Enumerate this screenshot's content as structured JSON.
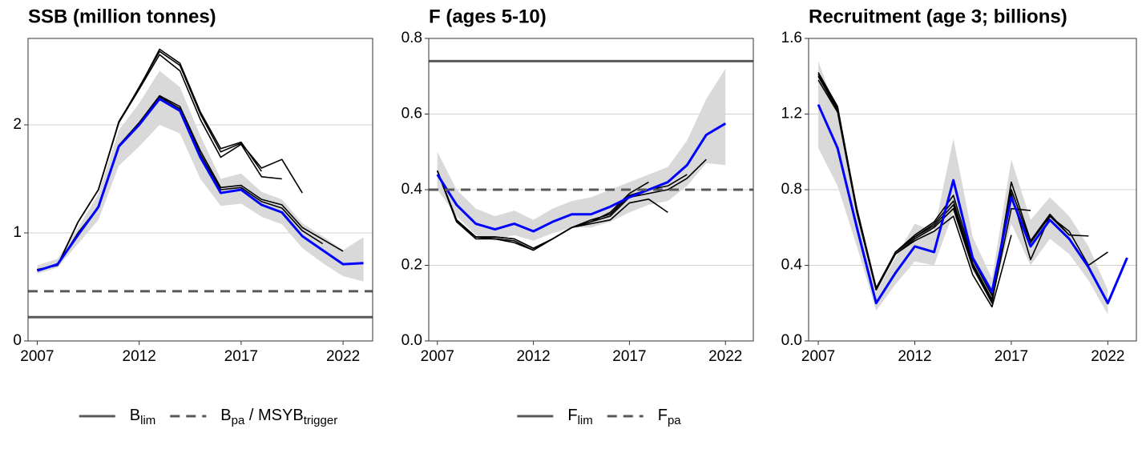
{
  "chart_data": [
    {
      "type": "line",
      "title": "SSB (million tonnes)",
      "x": [
        2007,
        2008,
        2009,
        2010,
        2011,
        2012,
        2013,
        2014,
        2015,
        2016,
        2017,
        2018,
        2019,
        2020,
        2021,
        2022,
        2023
      ],
      "xlim": [
        2006.55,
        2023.45
      ],
      "xticks": [
        2007,
        2012,
        2017,
        2022
      ],
      "ylim": [
        0,
        2.8
      ],
      "yticks": [
        0,
        1,
        2
      ],
      "grid": true,
      "band": {
        "color": "#d9d9d9",
        "lower": [
          0.62,
          0.68,
          0.9,
          1.12,
          1.62,
          1.8,
          2.0,
          1.92,
          1.5,
          1.25,
          1.27,
          1.15,
          1.08,
          0.86,
          0.72,
          0.6,
          0.55
        ],
        "upper": [
          0.7,
          0.76,
          1.05,
          1.36,
          1.95,
          2.2,
          2.5,
          2.35,
          1.9,
          1.5,
          1.55,
          1.38,
          1.31,
          1.09,
          0.97,
          0.84,
          0.96
        ]
      },
      "series": [
        {
          "color": "#000000",
          "values": [
            0.66,
            0.7,
            1.1,
            1.4,
            2.02,
            2.35,
            2.68,
            2.55,
            2.1,
            1.75,
            1.83,
            1.6,
            1.68,
            1.37,
            null,
            null,
            null
          ]
        },
        {
          "color": "#000000",
          "values": [
            0.66,
            0.7,
            1.1,
            1.4,
            2.02,
            2.33,
            2.65,
            2.5,
            2.05,
            1.7,
            1.82,
            1.52,
            1.5,
            null,
            null,
            null,
            null
          ]
        },
        {
          "color": "#000000",
          "values": [
            0.66,
            0.7,
            1.1,
            1.4,
            2.03,
            2.34,
            2.7,
            2.57,
            2.12,
            1.78,
            1.84,
            1.57,
            null,
            null,
            null,
            null,
            null
          ]
        },
        {
          "color": "#000000",
          "values": [
            0.66,
            0.7,
            1.0,
            1.24,
            1.81,
            2.02,
            2.27,
            2.17,
            1.76,
            1.42,
            1.44,
            1.31,
            1.26,
            1.05,
            0.94,
            0.83,
            null
          ]
        },
        {
          "color": "#000000",
          "values": [
            0.66,
            0.7,
            1.0,
            1.24,
            1.8,
            2.02,
            2.26,
            2.15,
            1.73,
            1.4,
            1.42,
            1.29,
            1.23,
            1.02,
            0.9,
            null,
            null
          ]
        },
        {
          "color": "#0000ff",
          "values": [
            0.65,
            0.71,
            0.98,
            1.24,
            1.8,
            2.0,
            2.24,
            2.13,
            1.7,
            1.37,
            1.4,
            1.26,
            1.19,
            0.97,
            0.84,
            0.71,
            0.72
          ]
        }
      ],
      "reference_lines": [
        {
          "value": 0.22,
          "color": "#595959",
          "dashed": false,
          "label": [
            {
              "text": "B"
            },
            {
              "text": "lim",
              "sub": true
            }
          ]
        },
        {
          "value": 0.46,
          "color": "#595959",
          "dashed": true,
          "label": [
            {
              "text": "B"
            },
            {
              "text": "pa",
              "sub": true
            },
            {
              "text": " / MSYB"
            },
            {
              "text": "trigger",
              "sub": true
            }
          ]
        }
      ]
    },
    {
      "type": "line",
      "title": "F (ages 5-10)",
      "x": [
        2007,
        2008,
        2009,
        2010,
        2011,
        2012,
        2013,
        2014,
        2015,
        2016,
        2017,
        2018,
        2019,
        2020,
        2021,
        2022
      ],
      "xlim": [
        2006.55,
        2023.45
      ],
      "xticks": [
        2007,
        2012,
        2017,
        2022
      ],
      "ylim": [
        0,
        0.8
      ],
      "yticks": [
        {
          "value": 0,
          "label": "0.0"
        },
        0.2,
        0.4,
        0.6,
        0.8
      ],
      "grid": true,
      "band": {
        "color": "#d9d9d9",
        "lower": [
          0.4,
          0.33,
          0.28,
          0.265,
          0.28,
          0.265,
          0.285,
          0.3,
          0.3,
          0.315,
          0.34,
          0.36,
          0.37,
          0.41,
          0.47,
          0.465
        ],
        "upper": [
          0.5,
          0.4,
          0.35,
          0.33,
          0.345,
          0.32,
          0.35,
          0.37,
          0.38,
          0.4,
          0.42,
          0.44,
          0.46,
          0.53,
          0.64,
          0.72
        ]
      },
      "series": [
        {
          "color": "#000000",
          "values": [
            0.45,
            0.32,
            0.275,
            0.275,
            0.27,
            0.245,
            0.27,
            0.3,
            0.315,
            0.33,
            0.38,
            0.39,
            0.4,
            0.43,
            0.48,
            null
          ]
        },
        {
          "color": "#000000",
          "values": [
            0.45,
            0.32,
            0.275,
            0.275,
            0.27,
            0.245,
            0.27,
            0.3,
            0.32,
            0.335,
            0.385,
            0.4,
            0.41,
            0.44,
            null,
            null
          ]
        },
        {
          "color": "#000000",
          "values": [
            0.45,
            0.315,
            0.27,
            0.27,
            0.265,
            0.24,
            0.27,
            0.3,
            0.31,
            0.32,
            0.365,
            0.375,
            0.34,
            null,
            null,
            null
          ]
        },
        {
          "color": "#000000",
          "values": [
            0.45,
            0.315,
            0.275,
            0.27,
            0.26,
            0.24,
            0.27,
            0.3,
            0.315,
            0.34,
            0.39,
            0.42,
            null,
            null,
            null,
            null
          ]
        },
        {
          "color": "#0000ff",
          "values": [
            0.44,
            0.36,
            0.31,
            0.295,
            0.31,
            0.29,
            0.315,
            0.335,
            0.335,
            0.355,
            0.38,
            0.4,
            0.42,
            0.465,
            0.545,
            0.575
          ]
        }
      ],
      "reference_lines": [
        {
          "value": 0.74,
          "color": "#595959",
          "dashed": false,
          "label": [
            {
              "text": "F"
            },
            {
              "text": "lim",
              "sub": true
            }
          ]
        },
        {
          "value": 0.4,
          "color": "#595959",
          "dashed": true,
          "label": [
            {
              "text": "F"
            },
            {
              "text": "pa",
              "sub": true
            }
          ]
        }
      ]
    },
    {
      "type": "line",
      "title": "Recruitment (age 3; billions)",
      "x": [
        2007,
        2008,
        2009,
        2010,
        2011,
        2012,
        2013,
        2014,
        2015,
        2016,
        2017,
        2018,
        2019,
        2020,
        2021,
        2022,
        2023
      ],
      "xlim": [
        2006.5,
        2023.48
      ],
      "xticks": [
        2007,
        2012,
        2017,
        2022
      ],
      "ylim": [
        0,
        1.6
      ],
      "yticks": [
        {
          "value": 0,
          "label": "0.0"
        },
        0.4,
        0.8,
        1.2,
        1.6
      ],
      "grid": true,
      "band": {
        "color": "#d9d9d9",
        "lower": [
          1.02,
          0.82,
          0.5,
          0.16,
          0.3,
          0.42,
          0.4,
          0.68,
          0.37,
          0.21,
          0.62,
          0.4,
          0.54,
          0.46,
          0.32,
          0.14,
          null
        ],
        "upper": [
          1.48,
          1.2,
          0.72,
          0.26,
          0.44,
          0.62,
          0.58,
          1.07,
          0.55,
          0.33,
          0.96,
          0.64,
          0.76,
          0.66,
          0.5,
          0.27,
          null
        ]
      },
      "series": [
        {
          "color": "#000000",
          "values": [
            1.41,
            1.23,
            0.7,
            0.28,
            0.47,
            0.56,
            0.63,
            0.77,
            0.43,
            0.24,
            0.8,
            0.52,
            0.66,
            0.58,
            0.4,
            0.47,
            null
          ]
        },
        {
          "color": "#000000",
          "values": [
            1.4,
            1.22,
            0.68,
            0.27,
            0.47,
            0.55,
            0.62,
            0.74,
            0.41,
            0.22,
            0.84,
            0.53,
            0.67,
            0.56,
            0.555,
            null,
            null
          ]
        },
        {
          "color": "#000000",
          "values": [
            1.42,
            1.24,
            0.69,
            0.28,
            0.46,
            0.54,
            0.6,
            0.7,
            0.39,
            0.2,
            0.78,
            0.43,
            0.66,
            0.56,
            null,
            null,
            null
          ]
        },
        {
          "color": "#000000",
          "values": [
            1.38,
            1.21,
            0.68,
            0.27,
            0.46,
            0.53,
            0.58,
            0.66,
            0.35,
            0.18,
            0.56,
            null,
            null,
            null,
            null,
            null,
            null
          ]
        },
        {
          "color": "#000000",
          "values": [
            1.4,
            1.22,
            0.69,
            0.27,
            0.47,
            0.55,
            0.61,
            0.72,
            0.4,
            0.21,
            0.7,
            0.69,
            null,
            null,
            null,
            null,
            null
          ]
        },
        {
          "color": "#0000ff",
          "values": [
            1.25,
            1.02,
            0.6,
            0.2,
            0.36,
            0.5,
            0.47,
            0.85,
            0.44,
            0.26,
            0.76,
            0.5,
            0.64,
            0.54,
            0.39,
            0.2,
            0.44
          ]
        }
      ],
      "reference_lines": []
    }
  ]
}
